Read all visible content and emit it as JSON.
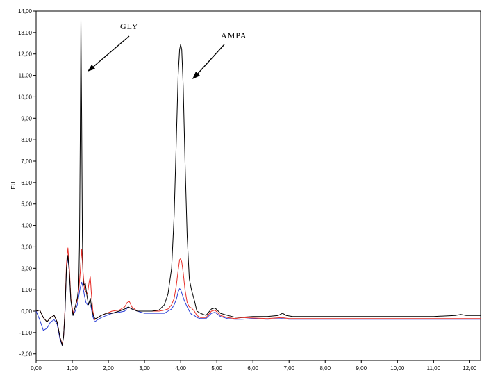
{
  "chart_data": {
    "type": "line",
    "ylabel": "EU",
    "xlim": [
      0,
      12.3
    ],
    "ylim": [
      -2.3,
      14.0
    ],
    "x_ticks": [
      0,
      1,
      2,
      3,
      4,
      5,
      6,
      7,
      8,
      9,
      10,
      11,
      12
    ],
    "x_tick_labels": [
      "0,00",
      "1,00",
      "2,00",
      "3,00",
      "4,00",
      "5,00",
      "6,00",
      "7,00",
      "8,00",
      "9,00",
      "10,00",
      "11,00",
      "12,00"
    ],
    "y_ticks": [
      -2,
      -1,
      0,
      1,
      2,
      3,
      4,
      5,
      6,
      7,
      8,
      9,
      10,
      11,
      12,
      13,
      14
    ],
    "y_tick_labels": [
      "-2,00",
      "-1,00",
      "0,00",
      "1,00",
      "2,00",
      "3,00",
      "4,00",
      "5,00",
      "6,00",
      "7,00",
      "8,00",
      "9,00",
      "10,00",
      "11,00",
      "12,00",
      "13,00",
      "14,00"
    ],
    "grid": false,
    "legend": "none",
    "annotations": [
      {
        "text": "GLY",
        "points_to": [
          1.3,
          11.3
        ]
      },
      {
        "text": "AMPA",
        "points_to": [
          4.1,
          10.8
        ]
      }
    ],
    "series": [
      {
        "color": "#000000",
        "x": [
          0.0,
          0.1,
          0.2,
          0.3,
          0.4,
          0.5,
          0.58,
          0.66,
          0.72,
          0.76,
          0.8,
          0.84,
          0.88,
          0.92,
          0.96,
          1.02,
          1.08,
          1.14,
          1.18,
          1.2,
          1.22,
          1.24,
          1.26,
          1.28,
          1.3,
          1.32,
          1.36,
          1.4,
          1.45,
          1.5,
          1.55,
          1.6,
          1.65,
          1.7,
          1.8,
          1.95,
          2.1,
          2.3,
          2.45,
          2.55,
          2.65,
          2.8,
          3.0,
          3.2,
          3.4,
          3.55,
          3.65,
          3.75,
          3.82,
          3.88,
          3.93,
          3.97,
          4.0,
          4.03,
          4.07,
          4.12,
          4.18,
          4.24,
          4.3,
          4.38,
          4.45,
          4.55,
          4.7,
          4.85,
          4.95,
          5.1,
          5.3,
          5.5,
          5.7,
          6.0,
          6.4,
          6.7,
          6.82,
          6.92,
          7.1,
          7.5,
          8.0,
          9.0,
          10.0,
          11.0,
          11.6,
          11.75,
          11.9,
          12.3
        ],
        "y": [
          0.0,
          0.05,
          -0.3,
          -0.5,
          -0.3,
          -0.2,
          -0.5,
          -1.2,
          -1.6,
          -1.2,
          0.0,
          2.0,
          2.6,
          1.8,
          0.5,
          -0.2,
          0.2,
          0.6,
          1.2,
          3.0,
          8.0,
          13.6,
          9.0,
          3.5,
          1.5,
          1.2,
          1.3,
          0.8,
          0.3,
          0.6,
          0.0,
          -0.3,
          -0.35,
          -0.3,
          -0.2,
          -0.1,
          -0.1,
          0.0,
          0.1,
          0.2,
          0.1,
          0.0,
          0.0,
          0.0,
          0.05,
          0.3,
          0.8,
          2.0,
          4.5,
          8.0,
          11.0,
          12.2,
          12.45,
          12.2,
          10.5,
          7.0,
          3.5,
          1.5,
          1.0,
          0.5,
          0.0,
          -0.1,
          -0.2,
          0.1,
          0.15,
          -0.1,
          -0.2,
          -0.28,
          -0.28,
          -0.25,
          -0.25,
          -0.2,
          -0.1,
          -0.2,
          -0.25,
          -0.25,
          -0.25,
          -0.25,
          -0.25,
          -0.25,
          -0.2,
          -0.15,
          -0.2,
          -0.2
        ]
      },
      {
        "color": "#e8302a",
        "x": [
          0.0,
          0.1,
          0.2,
          0.3,
          0.4,
          0.5,
          0.58,
          0.66,
          0.72,
          0.76,
          0.8,
          0.84,
          0.88,
          0.92,
          0.96,
          1.02,
          1.08,
          1.14,
          1.18,
          1.22,
          1.26,
          1.3,
          1.34,
          1.38,
          1.42,
          1.47,
          1.5,
          1.53,
          1.57,
          1.62,
          1.7,
          1.8,
          1.95,
          2.1,
          2.3,
          2.45,
          2.52,
          2.58,
          2.65,
          2.8,
          3.0,
          3.2,
          3.4,
          3.55,
          3.65,
          3.75,
          3.82,
          3.88,
          3.93,
          3.97,
          4.0,
          4.03,
          4.07,
          4.12,
          4.18,
          4.24,
          4.3,
          4.38,
          4.45,
          4.55,
          4.7,
          4.85,
          4.95,
          5.1,
          5.3,
          5.5,
          5.7,
          6.0,
          6.4,
          6.8,
          7.0,
          7.5,
          8.0,
          9.0,
          10.0,
          11.0,
          12.3
        ],
        "y": [
          0.0,
          0.05,
          -0.3,
          -0.5,
          -0.3,
          -0.2,
          -0.5,
          -1.2,
          -1.55,
          -1.2,
          0.1,
          2.2,
          2.95,
          2.0,
          0.6,
          -0.1,
          0.2,
          0.5,
          1.0,
          1.8,
          2.9,
          1.8,
          1.0,
          0.9,
          0.8,
          1.4,
          1.6,
          0.8,
          0.0,
          -0.4,
          -0.3,
          -0.2,
          -0.1,
          0.0,
          0.05,
          0.2,
          0.4,
          0.45,
          0.2,
          0.0,
          0.0,
          0.0,
          0.0,
          0.05,
          0.1,
          0.3,
          0.6,
          1.2,
          1.9,
          2.4,
          2.45,
          2.3,
          1.8,
          1.0,
          0.4,
          0.2,
          0.15,
          0.0,
          -0.2,
          -0.3,
          -0.3,
          0.0,
          0.05,
          -0.2,
          -0.3,
          -0.35,
          -0.3,
          -0.32,
          -0.35,
          -0.3,
          -0.35,
          -0.35,
          -0.35,
          -0.35,
          -0.35,
          -0.35,
          -0.35
        ]
      },
      {
        "color": "#2b3fd6",
        "x": [
          0.0,
          0.1,
          0.2,
          0.3,
          0.4,
          0.5,
          0.58,
          0.66,
          0.72,
          0.76,
          0.8,
          0.84,
          0.88,
          0.92,
          0.96,
          1.02,
          1.08,
          1.14,
          1.18,
          1.22,
          1.26,
          1.3,
          1.34,
          1.38,
          1.42,
          1.47,
          1.52,
          1.56,
          1.62,
          1.7,
          1.8,
          1.95,
          2.1,
          2.3,
          2.45,
          2.55,
          2.65,
          2.8,
          3.0,
          3.2,
          3.4,
          3.55,
          3.65,
          3.75,
          3.82,
          3.88,
          3.93,
          3.97,
          4.0,
          4.04,
          4.1,
          4.18,
          4.24,
          4.3,
          4.38,
          4.45,
          4.55,
          4.7,
          4.85,
          4.95,
          5.1,
          5.3,
          5.5,
          5.7,
          6.0,
          6.4,
          6.8,
          7.0,
          7.5,
          8.0,
          9.0,
          10.0,
          11.0,
          12.3
        ],
        "y": [
          0.0,
          -0.4,
          -0.9,
          -0.8,
          -0.5,
          -0.4,
          -0.6,
          -1.3,
          -1.6,
          -1.2,
          0.0,
          2.0,
          2.5,
          1.8,
          0.5,
          -0.2,
          0.0,
          0.3,
          0.7,
          1.1,
          1.35,
          1.1,
          0.7,
          0.4,
          0.3,
          0.4,
          0.2,
          -0.2,
          -0.5,
          -0.4,
          -0.3,
          -0.2,
          -0.1,
          -0.05,
          0.0,
          0.2,
          0.1,
          0.0,
          -0.1,
          -0.1,
          -0.1,
          -0.1,
          0.0,
          0.1,
          0.3,
          0.55,
          0.9,
          1.05,
          1.0,
          0.8,
          0.5,
          0.2,
          0.0,
          -0.15,
          -0.2,
          -0.3,
          -0.35,
          -0.35,
          -0.1,
          -0.05,
          -0.25,
          -0.35,
          -0.38,
          -0.38,
          -0.35,
          -0.38,
          -0.35,
          -0.38,
          -0.38,
          -0.38,
          -0.38,
          -0.38,
          -0.38,
          -0.38
        ]
      }
    ]
  }
}
